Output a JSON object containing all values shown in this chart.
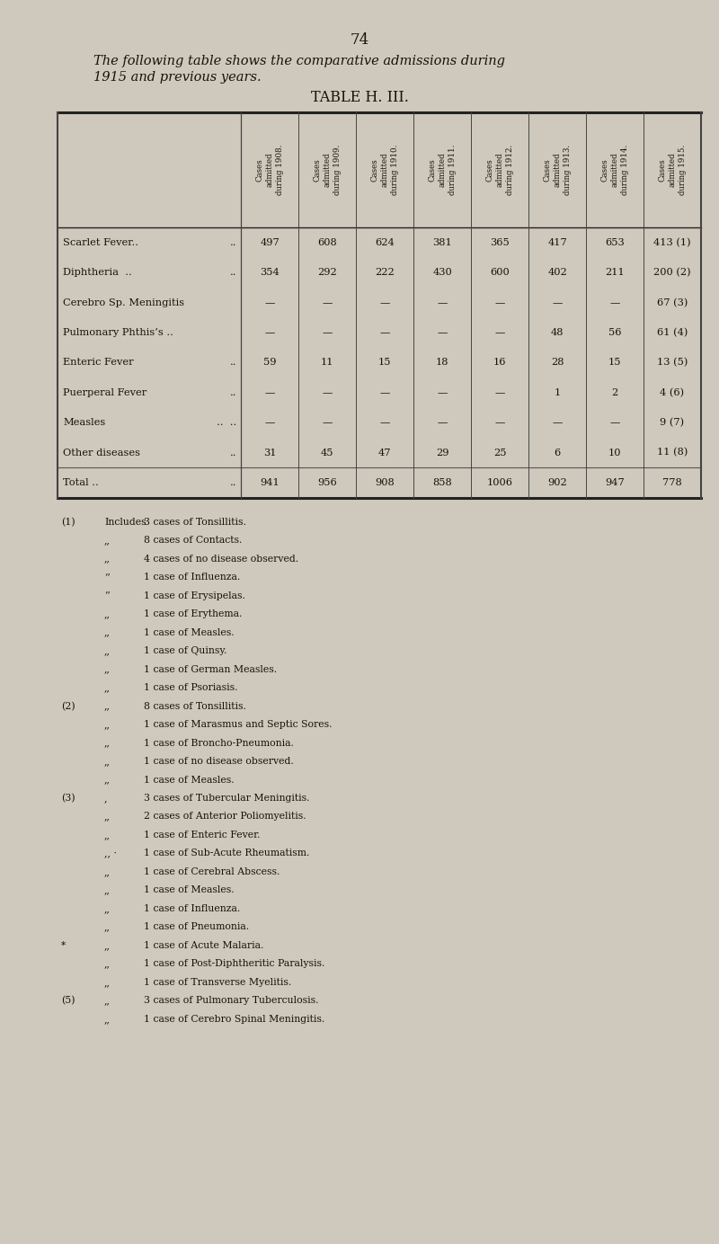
{
  "page_number": "74",
  "intro_text_line1": "The following table shows the comparative admissions during",
  "intro_text_line2": "1915 and previous years.",
  "table_title_plain": "TABLE H. III.",
  "col_headers": [
    "Cases\nadmitted\nduring 1908.",
    "Cases\nadmitted\nduring 1909.",
    "Cases\nadmitted\nduring 1910.",
    "Cases\nadmitted\nduring 1911.",
    "Cases\nadmitted\nduring 1912.",
    "Cases\nadmitted\nduring 1913.",
    "Cases\nadmitted\nduring 1914.",
    "Cases\nadmitted\nduring 1915."
  ],
  "row_labels": [
    [
      "Scarlet Fever..",
      "  .."
    ],
    [
      "Diphtheria  ..",
      "  .."
    ],
    [
      "Cerebro Sp. Meningitis",
      ""
    ],
    [
      "Pulmonary Phthis’s ..",
      ""
    ],
    [
      "Enteric Fever",
      "  .."
    ],
    [
      "Puerperal Fever",
      "  .."
    ],
    [
      "Measles",
      "  ..  .."
    ],
    [
      "Other diseases",
      "  .."
    ],
    [
      "Total ..",
      "  .."
    ]
  ],
  "data": [
    [
      "497",
      "608",
      "624",
      "381",
      "365",
      "417",
      "653",
      "413 (1)"
    ],
    [
      "354",
      "292",
      "222",
      "430",
      "600",
      "402",
      "211",
      "200 (2)"
    ],
    [
      "—",
      "—",
      "—",
      "—",
      "—",
      "—",
      "—",
      "67 (3)"
    ],
    [
      "—",
      "—",
      "—",
      "—",
      "—",
      "48",
      "56",
      "61 (4)"
    ],
    [
      "59",
      "11",
      "15",
      "18",
      "16",
      "28",
      "15",
      "13 (5)"
    ],
    [
      "—",
      "—",
      "—",
      "—",
      "—",
      "1",
      "2",
      "4 (6)"
    ],
    [
      "—",
      "—",
      "—",
      "—",
      "—",
      "—",
      "—",
      "9 (7)"
    ],
    [
      "31",
      "45",
      "47",
      "29",
      "25",
      "6",
      "10",
      "11 (8)"
    ],
    [
      "941",
      "956",
      "908",
      "858",
      "1006",
      "902",
      "947",
      "778"
    ]
  ],
  "footnote_blocks": [
    {
      "label": "(1)",
      "indent1": "Includes",
      "text": "3 cases of Tonsillitis."
    },
    {
      "label": "",
      "indent1": ",,",
      "text": "8 cases of Contacts."
    },
    {
      "label": "",
      "indent1": ",,",
      "text": "4 cases of no disease observed."
    },
    {
      "label": "",
      "indent1": "’’",
      "text": "1 case of Influenza."
    },
    {
      "label": "",
      "indent1": "’’",
      "text": "1 case of Erysipelas."
    },
    {
      "label": "",
      "indent1": ",,",
      "text": "1 case of Erythema."
    },
    {
      "label": "",
      "indent1": ",,",
      "text": "1 case of Measles."
    },
    {
      "label": "",
      "indent1": ",,",
      "text": "1 case of Quinsy."
    },
    {
      "label": "",
      "indent1": ",,",
      "text": "1 case of German Measles."
    },
    {
      "label": "",
      "indent1": ",,",
      "text": "1 case of Psoriasis."
    },
    {
      "label": "(2)",
      "indent1": ",,",
      "text": "8 cases of Tonsillitis."
    },
    {
      "label": "",
      "indent1": ",,",
      "text": "1 case of Marasmus and Septic Sores."
    },
    {
      "label": "",
      "indent1": ",,",
      "text": "1 case of Broncho-Pneumonia."
    },
    {
      "label": "",
      "indent1": ",,",
      "text": "1 case of no disease observed."
    },
    {
      "label": "",
      "indent1": ",,",
      "text": "1 case of Measles."
    },
    {
      "label": "(3)",
      "indent1": ",",
      "text": "3 cases of Tubercular Meningitis."
    },
    {
      "label": "",
      "indent1": ",,",
      "text": "2 cases of Anterior Poliomyelitis."
    },
    {
      "label": "",
      "indent1": ",,",
      "text": "1 case of Enteric Fever."
    },
    {
      "label": "",
      "indent1": ",, ·",
      "text": "1 case of Sub-Acute Rheumatism."
    },
    {
      "label": "",
      "indent1": ",,",
      "text": "1 case of Cerebral Abscess."
    },
    {
      "label": "",
      "indent1": ",,",
      "text": "1 case of Measles."
    },
    {
      "label": "",
      "indent1": ",,",
      "text": "1 case of Influenza."
    },
    {
      "label": "",
      "indent1": ",,",
      "text": "1 case of Pneumonia."
    },
    {
      "label": "*",
      "indent1": ",,",
      "text": "1 case of Acute Malaria."
    },
    {
      "label": "",
      "indent1": ",,",
      "text": "1 case of Post-Diphtheritic Paralysis."
    },
    {
      "label": "",
      "indent1": ",,",
      "text": "1 case of Transverse Myelitis."
    },
    {
      "label": "(5)",
      "indent1": ",,",
      "text": "3 cases of Pulmonary Tuberculosis."
    },
    {
      "label": "",
      "indent1": ",,",
      "text": "1 case of Cerebro Spinal Meningitis."
    }
  ],
  "bg_color": "#cec9bc",
  "text_color": "#1a1208",
  "table_line_color": "#222222"
}
